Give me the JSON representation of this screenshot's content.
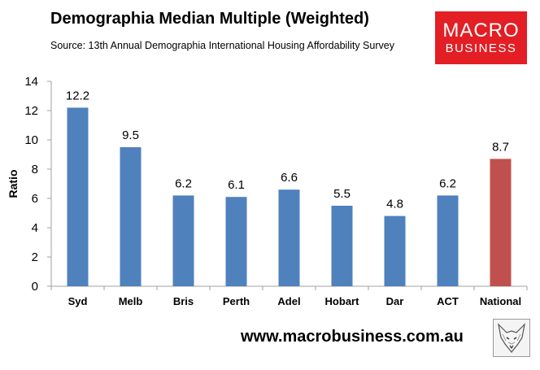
{
  "header": {
    "title": "Demographia Median Multiple (Weighted)",
    "subtitle": "Source: 13th Annual Demographia International Housing Affordability Survey"
  },
  "logo": {
    "line1": "MACRO",
    "line2": "BUSINESS",
    "color": "#e31e24"
  },
  "footer": {
    "url": "www.macrobusiness.com.au",
    "icon": "fox-logo"
  },
  "chart_data": {
    "type": "bar",
    "title": "Demographia Median Multiple (Weighted)",
    "subtitle": "Source: 13th Annual Demographia International Housing Affordability Survey",
    "xlabel": "",
    "ylabel": "Ratio",
    "ylim": [
      0,
      14
    ],
    "yticks": [
      0,
      2,
      4,
      6,
      8,
      10,
      12,
      14
    ],
    "categories": [
      "Syd",
      "Melb",
      "Bris",
      "Perth",
      "Adel",
      "Hobart",
      "Dar",
      "ACT",
      "National"
    ],
    "values": [
      12.2,
      9.5,
      6.2,
      6.1,
      6.6,
      5.5,
      4.8,
      6.2,
      8.7
    ],
    "data_labels": [
      "12.2",
      "9.5",
      "6.2",
      "6.1",
      "6.6",
      "5.5",
      "4.8",
      "6.2",
      "8.7"
    ],
    "colors": [
      "#4f81bd",
      "#4f81bd",
      "#4f81bd",
      "#4f81bd",
      "#4f81bd",
      "#4f81bd",
      "#4f81bd",
      "#4f81bd",
      "#c0504d"
    ],
    "grid": false,
    "legend": "none"
  }
}
